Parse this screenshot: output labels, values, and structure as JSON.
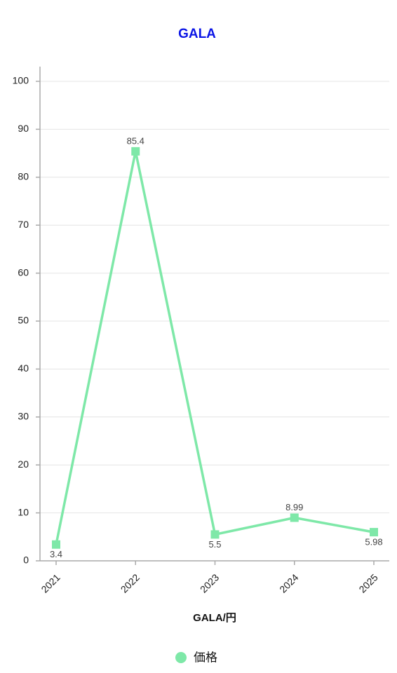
{
  "chart_data": {
    "type": "line",
    "title": "GALA",
    "x_label": "GALA/円",
    "categories": [
      "2021",
      "2022",
      "2023",
      "2024",
      "2025"
    ],
    "series": [
      {
        "name": "価格",
        "color": "#7ee8a8",
        "values": [
          3.4,
          85.4,
          5.5,
          8.99,
          5.98
        ]
      }
    ],
    "ylim": [
      0,
      100
    ],
    "yticks": [
      0,
      10,
      20,
      30,
      40,
      50,
      60,
      70,
      80,
      90,
      100
    ],
    "grid": true,
    "legend": "bottom"
  }
}
